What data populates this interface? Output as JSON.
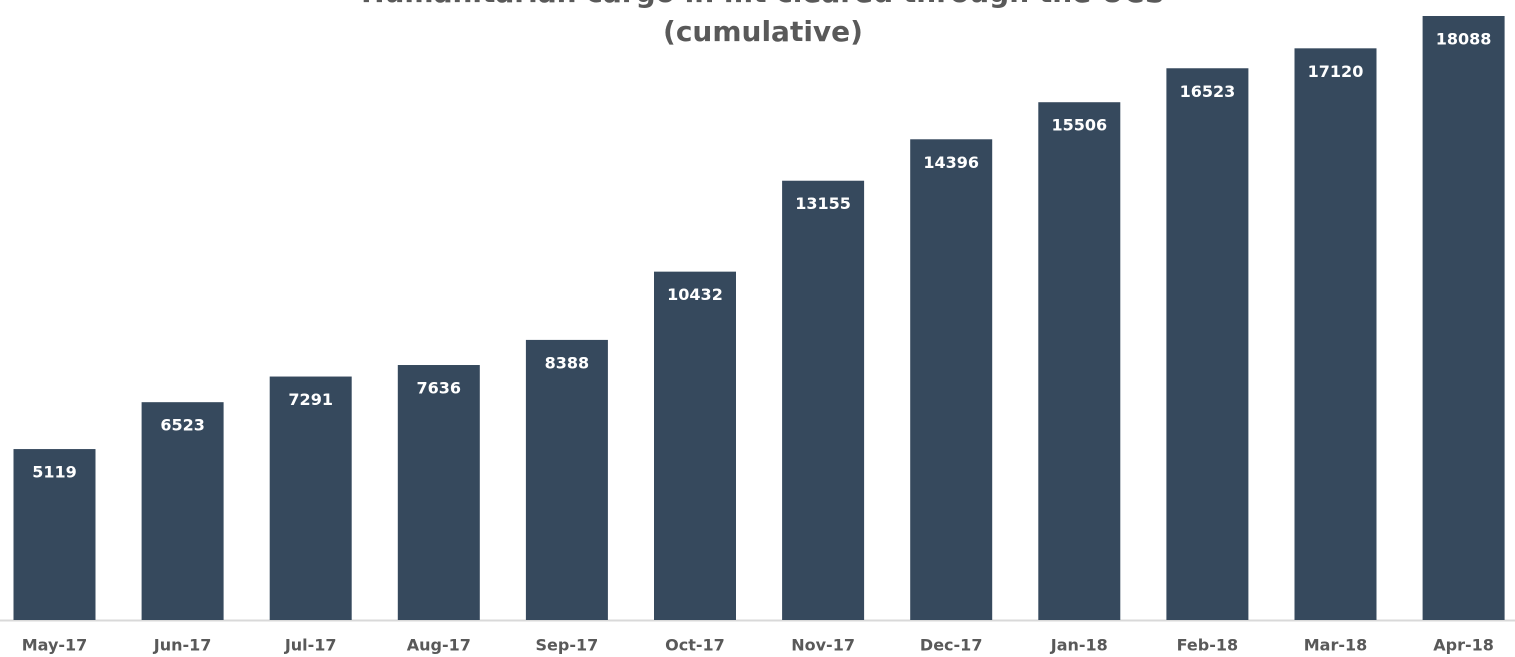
{
  "chart_data": {
    "type": "bar",
    "title": [
      "Humanitarian cargo in mt cleared through the UCS",
      "(cumulative)"
    ],
    "categories": [
      "May-17",
      "Jun-17",
      "Jul-17",
      "Aug-17",
      "Sep-17",
      "Oct-17",
      "Nov-17",
      "Dec-17",
      "Jan-18",
      "Feb-18",
      "Mar-18",
      "Apr-18"
    ],
    "values": [
      5119,
      6523,
      7291,
      7636,
      8388,
      10432,
      13155,
      14396,
      15506,
      16523,
      17120,
      18088
    ],
    "color": "#36495d"
  }
}
